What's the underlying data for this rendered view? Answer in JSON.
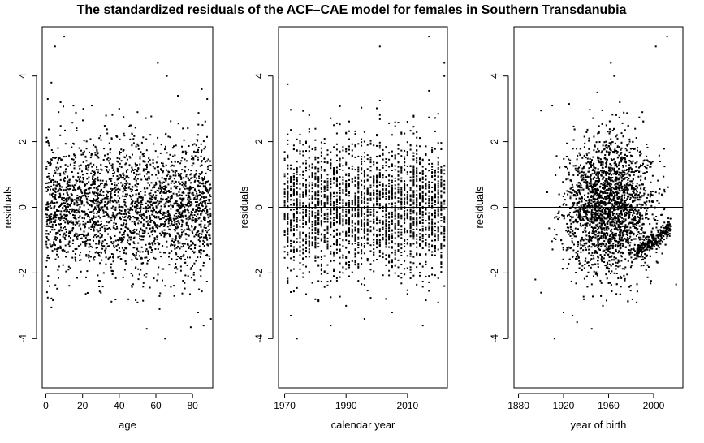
{
  "chart_data": {
    "title": "The standardized residuals of the ACF–CAE model for females in Southern Transdanubia",
    "panels": [
      {
        "type": "scatter",
        "xlabel": "age",
        "ylabel": "residuals",
        "xlim": [
          -2,
          91
        ],
        "ylim": [
          -5.5,
          5.5
        ],
        "xticks": [
          0,
          20,
          40,
          60,
          80
        ],
        "yticks": [
          -4,
          -2,
          0,
          2,
          4
        ],
        "zero_line": false,
        "points": [
          [
            3,
            -3.05
          ],
          [
            1,
            -2.25
          ],
          [
            2,
            -2.4
          ],
          [
            10,
            5.2
          ],
          [
            5,
            4.9
          ],
          [
            3,
            3.8
          ],
          [
            1,
            3.3
          ],
          [
            8,
            3.2
          ],
          [
            61,
            4.4
          ],
          [
            66,
            4.0
          ],
          [
            72,
            3.4
          ],
          [
            85,
            3.6
          ],
          [
            88,
            3.3
          ],
          [
            55,
            -3.7
          ],
          [
            65,
            -4.0
          ],
          [
            79,
            -3.65
          ],
          [
            86,
            -3.6
          ],
          [
            90,
            -3.4
          ],
          [
            83,
            -3.2
          ],
          [
            62,
            -3.1
          ],
          [
            50,
            -2.9
          ],
          [
            30,
            -2.6
          ],
          [
            45,
            -2.8
          ],
          [
            70,
            -2.7
          ],
          [
            25,
            3.1
          ],
          [
            40,
            3.0
          ],
          [
            50,
            2.9
          ],
          [
            15,
            3.1
          ]
        ],
        "cloud": {
          "x_range": [
            0,
            90
          ],
          "center": 0,
          "spread": 1.0
        }
      },
      {
        "type": "scatter",
        "xlabel": "calendar year",
        "ylabel": "residuals",
        "xlim": [
          1968,
          2023
        ],
        "ylim": [
          -5.5,
          5.5
        ],
        "xticks": [
          1970,
          1990,
          2010
        ],
        "yticks": [
          -4,
          -2,
          0,
          2,
          4
        ],
        "zero_line": true,
        "points": [
          [
            2017,
            5.2
          ],
          [
            2001,
            4.9
          ],
          [
            2022,
            4.4
          ],
          [
            2022,
            4.0
          ],
          [
            1971,
            3.75
          ],
          [
            2017,
            3.55
          ],
          [
            2001,
            3.25
          ],
          [
            1974,
            -4.0
          ],
          [
            1985,
            -3.6
          ],
          [
            2015,
            -3.6
          ],
          [
            1996,
            -3.4
          ],
          [
            1972,
            -3.3
          ],
          [
            2005,
            -3.2
          ],
          [
            1990,
            -3.0
          ],
          [
            2020,
            -2.9
          ],
          [
            1980,
            -2.8
          ],
          [
            2022,
            -2.4
          ]
        ],
        "cloud": {
          "x_range": [
            1970,
            2022
          ],
          "center": 0,
          "spread": 1.0
        }
      },
      {
        "type": "scatter",
        "xlabel": "year of birth",
        "ylabel": "residuals",
        "xlim": [
          1876,
          2026
        ],
        "ylim": [
          -5.5,
          5.5
        ],
        "xticks": [
          1880,
          1920,
          1960,
          2000
        ],
        "yticks": [
          -4,
          -2,
          0,
          2,
          4
        ],
        "zero_line": true,
        "points": [
          [
            2012,
            5.2
          ],
          [
            2002,
            4.9
          ],
          [
            1962,
            4.4
          ],
          [
            1965,
            4.0
          ],
          [
            1900,
            2.95
          ],
          [
            1910,
            3.1
          ],
          [
            1925,
            3.15
          ],
          [
            1950,
            3.5
          ],
          [
            1970,
            3.2
          ],
          [
            1990,
            2.9
          ],
          [
            1928,
            -3.3
          ],
          [
            1932,
            -3.5
          ],
          [
            1938,
            -2.8
          ],
          [
            1912,
            -4.0
          ],
          [
            1945,
            -3.7
          ],
          [
            1920,
            -3.2
          ],
          [
            1985,
            -2.9
          ],
          [
            2020,
            -2.35
          ],
          [
            1900,
            -2.6
          ],
          [
            1895,
            -2.2
          ],
          [
            1955,
            -3.0
          ]
        ],
        "cloud": {
          "x_range": [
            1880,
            2020
          ],
          "center": 0,
          "spread": 1.0
        },
        "trend_band": {
          "x_range": [
            1985,
            2015
          ],
          "y_start": -1.4,
          "y_end": -0.6
        }
      }
    ]
  }
}
